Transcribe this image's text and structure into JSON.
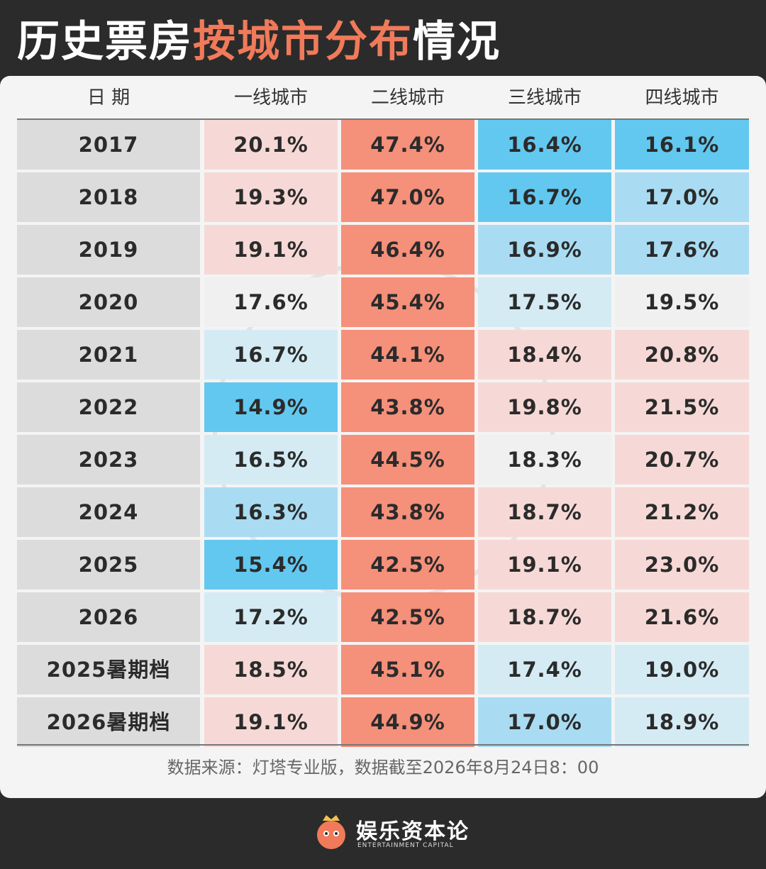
{
  "title": {
    "part1": "历史票房",
    "part2": "按城市分布",
    "part3": "情况"
  },
  "chart_data": {
    "type": "table",
    "columns": [
      "日 期",
      "一线城市",
      "二线城市",
      "三线城市",
      "四线城市"
    ],
    "rows": [
      {
        "label": "2017",
        "values": [
          "20.1%",
          "47.4%",
          "16.4%",
          "16.1%"
        ]
      },
      {
        "label": "2018",
        "values": [
          "19.3%",
          "47.0%",
          "16.7%",
          "17.0%"
        ]
      },
      {
        "label": "2019",
        "values": [
          "19.1%",
          "46.4%",
          "16.9%",
          "17.6%"
        ]
      },
      {
        "label": "2020",
        "values": [
          "17.6%",
          "45.4%",
          "17.5%",
          "19.5%"
        ]
      },
      {
        "label": "2021",
        "values": [
          "16.7%",
          "44.1%",
          "18.4%",
          "20.8%"
        ]
      },
      {
        "label": "2022",
        "values": [
          "14.9%",
          "43.8%",
          "19.8%",
          "21.5%"
        ]
      },
      {
        "label": "2023",
        "values": [
          "16.5%",
          "44.5%",
          "18.3%",
          "20.7%"
        ]
      },
      {
        "label": "2024",
        "values": [
          "16.3%",
          "43.8%",
          "18.7%",
          "21.2%"
        ]
      },
      {
        "label": "2025",
        "values": [
          "15.4%",
          "42.5%",
          "19.1%",
          "23.0%"
        ]
      },
      {
        "label": "2026",
        "values": [
          "17.2%",
          "42.5%",
          "18.7%",
          "21.6%"
        ]
      },
      {
        "label": "2025暑期档",
        "values": [
          "18.5%",
          "45.1%",
          "17.4%",
          "19.0%"
        ]
      },
      {
        "label": "2026暑期档",
        "values": [
          "19.1%",
          "44.9%",
          "17.0%",
          "18.9%"
        ]
      }
    ]
  },
  "source": "数据来源：灯塔专业版，数据截至2026年8月24日8：00",
  "footer": {
    "brand": "娱乐资本论",
    "brand_en": "ENTERTAINMENT CAPITAL"
  },
  "colors": {
    "background": "#2b2b2b",
    "accent": "#f07a5a",
    "year_cell": "#dcdcdc",
    "tier2": "#f5907a",
    "blue_strong": "#63c8ef",
    "blue_mid": "#a9dcf2",
    "blue_light": "#d4ebf4",
    "neutral": "#f0f0f0",
    "pink_light": "#f6d9d6"
  }
}
